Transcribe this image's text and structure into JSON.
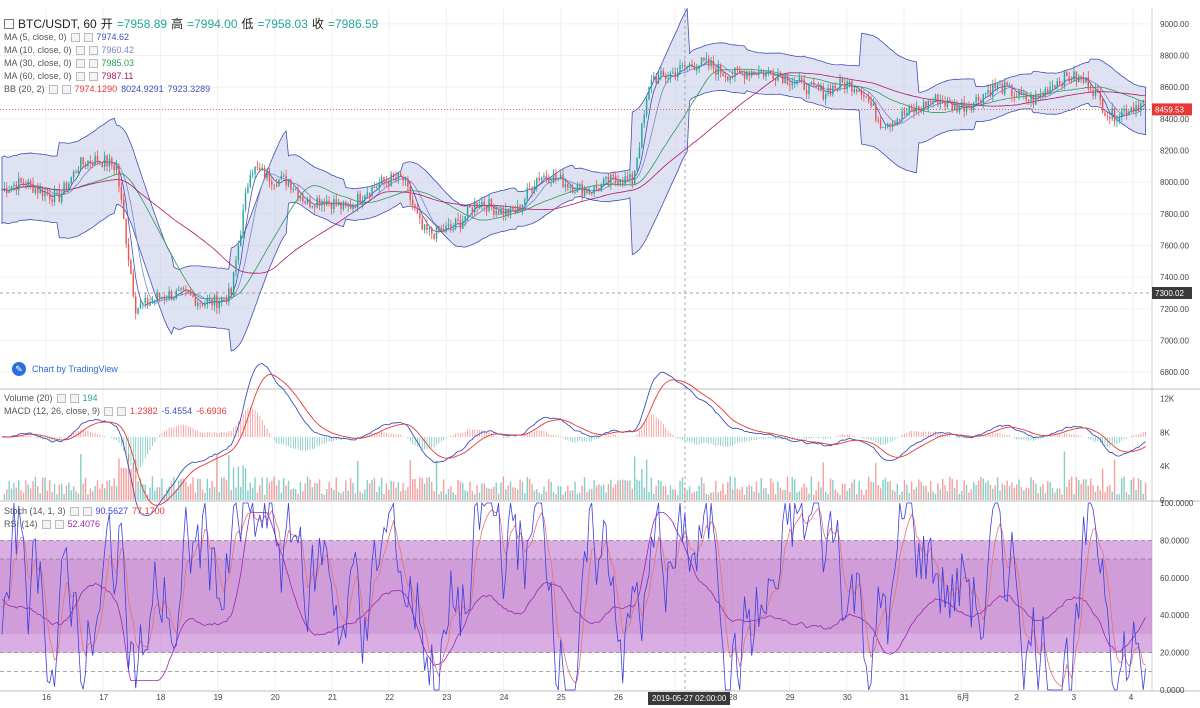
{
  "header": {
    "symbol": "BTC/USDT, 60",
    "open_label": "开",
    "open": "=7958.89",
    "high_label": "高",
    "high": "=7994.00",
    "low_label": "低",
    "low": "=7958.03",
    "close_label": "收",
    "close": "=7986.59"
  },
  "indicators": [
    {
      "name": "MA (5, close, 0)",
      "value": "7974.62",
      "color": "#3f51b5"
    },
    {
      "name": "MA (10, close, 0)",
      "value": "7960.42",
      "color": "#7986cb"
    },
    {
      "name": "MA (30, close, 0)",
      "value": "7985.03",
      "color": "#2e9b57"
    },
    {
      "name": "MA (60, close, 0)",
      "value": "7987.11",
      "color": "#b0186a"
    },
    {
      "name": "BB (20, 2)",
      "value": "7974.1290",
      "value2": "8024.9291",
      "value3": "7923.3289",
      "color": "#e53935"
    }
  ],
  "volume_legend": {
    "name": "Volume (20)",
    "value": "194"
  },
  "macd_legend": {
    "name": "MACD (12, 26, close, 9)",
    "v1": "1.2382",
    "v2": "-5.4554",
    "v3": "-6.6936"
  },
  "stoch_legend": {
    "name": "Stoch (14, 1, 3)",
    "v1": "90.5627",
    "v2": "77.1700"
  },
  "rsi_legend": {
    "name": "RSI (14)",
    "v1": "52.4076"
  },
  "watermark": "Chart by TradingView",
  "cursor_label": "2019-05-27 02:00:00",
  "colors": {
    "up": "#26a69a",
    "down": "#ef5350",
    "band": "#c5cae9",
    "price_line": "#e53935",
    "macd": "#3f51b5",
    "signal": "#e53935",
    "stoch_k": "#3f3fe0",
    "stoch_d": "#e57373",
    "rsi": "#9c27b0",
    "rsi_band": "#ce93d8"
  },
  "chart_data": [
    {
      "type": "candlestick",
      "title": "BTC/USDT, 60",
      "x_ticks": [
        "16",
        "17",
        "18",
        "19",
        "20",
        "21",
        "22",
        "23",
        "24",
        "25",
        "26",
        "27",
        "28",
        "29",
        "30",
        "31",
        "6月",
        "2",
        "3",
        "4"
      ],
      "ylim": [
        6700,
        9100
      ],
      "y_ticks": [
        "9000.00",
        "8800.00",
        "8600.00",
        "8400.00",
        "8200.00",
        "8000.00",
        "7800.00",
        "7600.00",
        "7400.00",
        "7200.00",
        "7000.00",
        "6800.00"
      ],
      "last_price": "8459.53",
      "crosshair_price": "7300.02",
      "daily_close": [
        7950,
        8100,
        7250,
        7280,
        8050,
        7850,
        7980,
        7720,
        7850,
        8000,
        7980,
        8700,
        8720,
        8650,
        8580,
        8420,
        8520,
        8560,
        8620,
        8460
      ],
      "bb_width": [
        420,
        600,
        500,
        380,
        650,
        300,
        200,
        280,
        260,
        220,
        180,
        900,
        300,
        260,
        280,
        700,
        320,
        220,
        260,
        300
      ]
    },
    {
      "type": "bar",
      "title": "Volume (20) / MACD (12, 26, close, 9)",
      "y_ticks": [
        "12K",
        "8K",
        "4K",
        "0"
      ],
      "ylim": [
        0,
        13000
      ]
    },
    {
      "type": "line",
      "title": "Stoch (14, 1, 3) / RSI (14)",
      "ylim": [
        0,
        100
      ],
      "y_ticks": [
        "100.0000",
        "80.0000",
        "60.0000",
        "40.0000",
        "20.0000",
        "0.0000"
      ],
      "bands": [
        80,
        20,
        70,
        30
      ]
    }
  ]
}
